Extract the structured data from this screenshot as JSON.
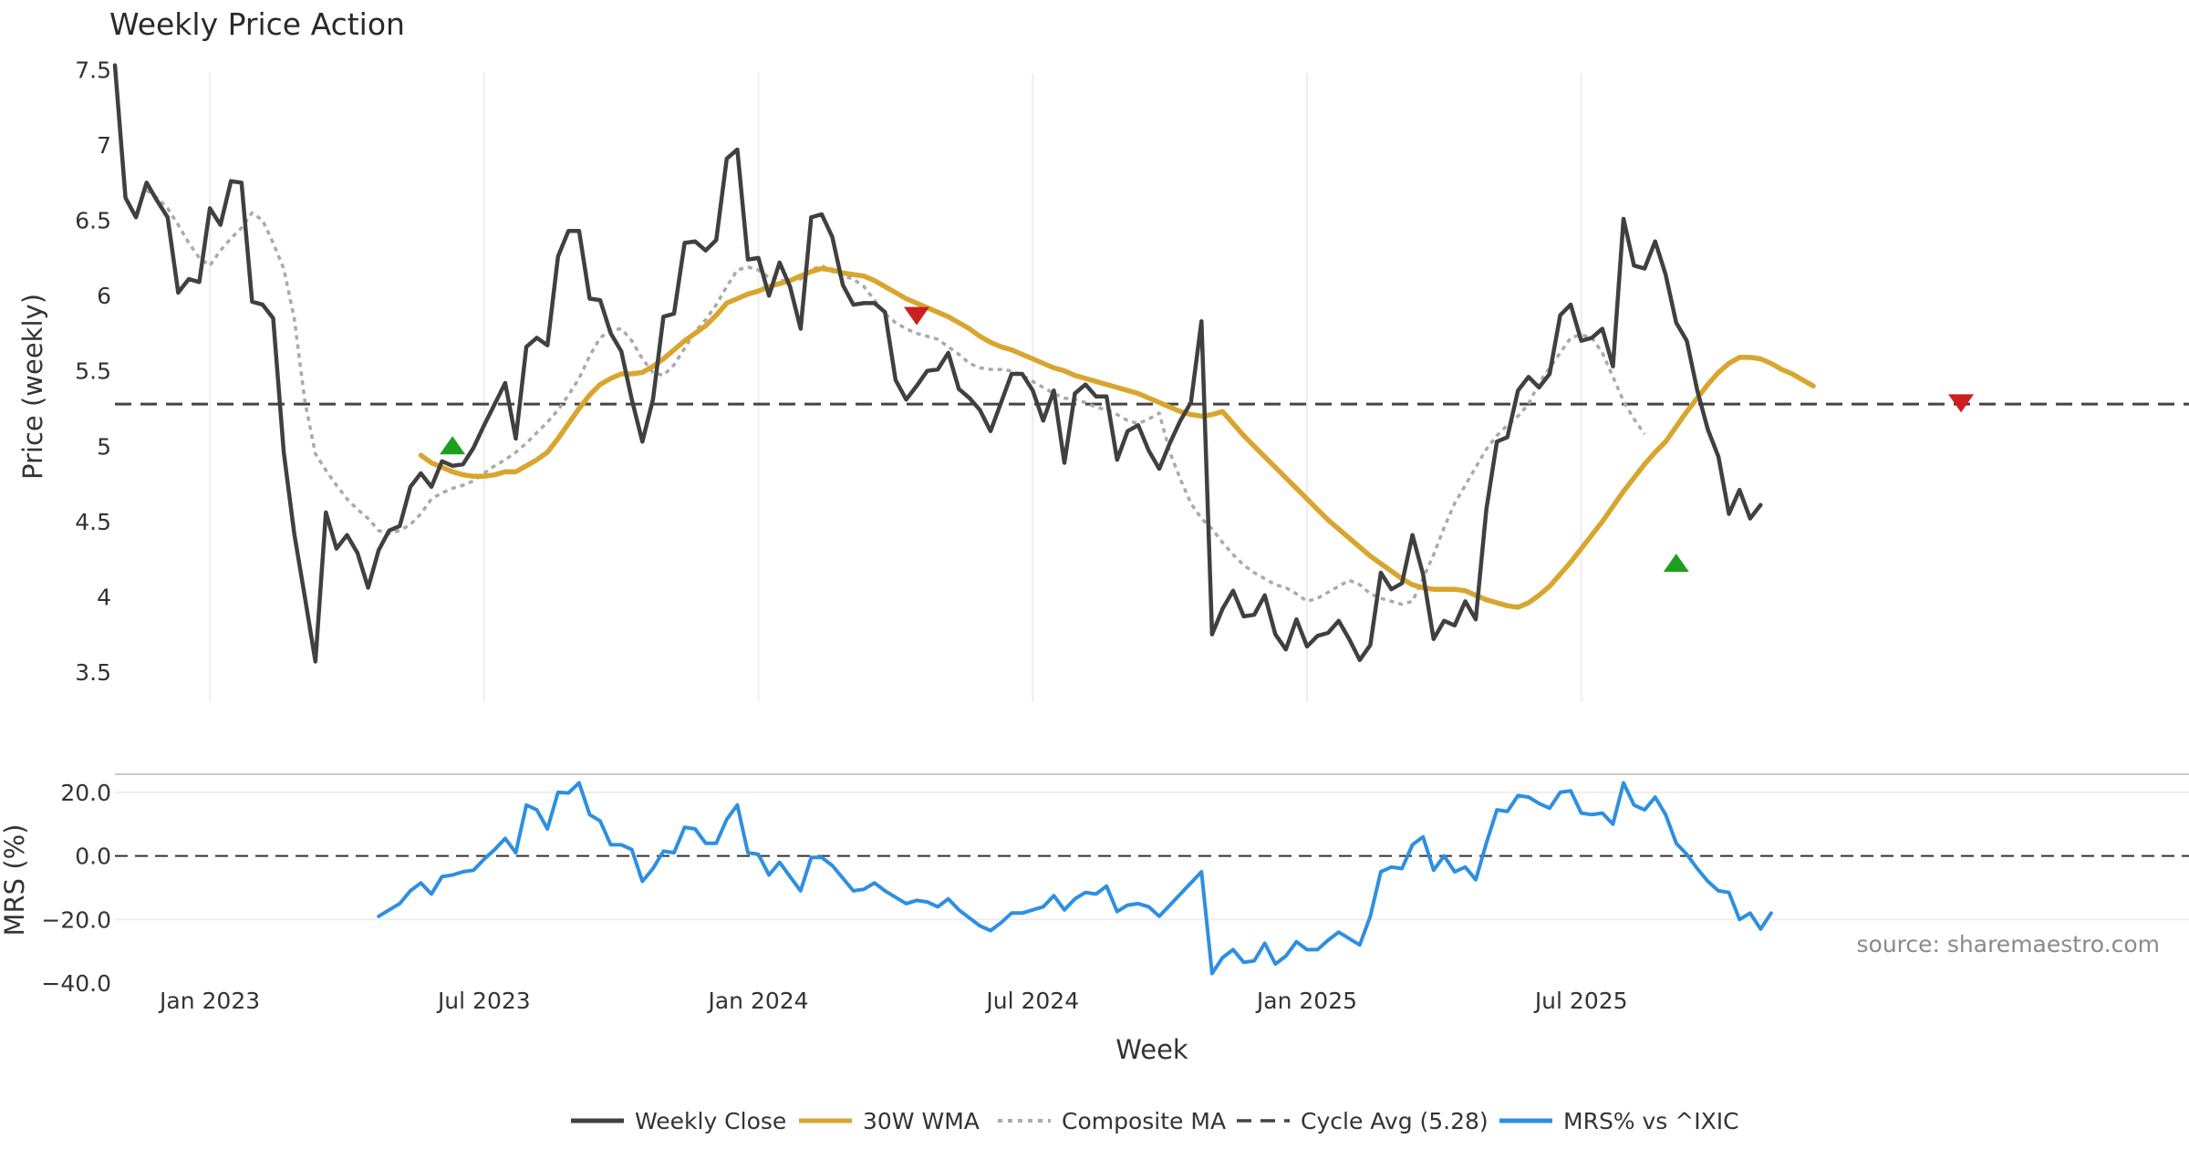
{
  "chart_data": {
    "type": "line",
    "title": "Weekly Price Action",
    "source_text": "source: sharemaestro.com",
    "xlabel": "Week",
    "x_tick_labels": [
      "Jan 2023",
      "Jul 2023",
      "Jan 2024",
      "Jul 2024",
      "Jan 2025",
      "Jul 2025"
    ],
    "x_range_weeks": [
      -9,
      180
    ],
    "price_panel": {
      "ylabel": "Price (weekly)",
      "ylim": [
        3.3,
        7.6
      ],
      "yticks": [
        3.5,
        4,
        4.5,
        5,
        5.5,
        6,
        6.5,
        7,
        7.5
      ],
      "ytick_labels": [
        "3.5",
        "4",
        "4.5",
        "5",
        "5.5",
        "6",
        "6.5",
        "7",
        "7.5"
      ],
      "weekly_close": {
        "name": "Weekly Close",
        "color": "#404040",
        "start_week": -9,
        "values": [
          7.53,
          6.65,
          6.52,
          6.75,
          6.63,
          6.52,
          6.02,
          6.11,
          6.09,
          6.58,
          6.47,
          6.76,
          6.75,
          5.96,
          5.94,
          5.85,
          4.96,
          4.42,
          4.0,
          3.57,
          4.56,
          4.32,
          4.41,
          4.29,
          4.06,
          4.31,
          4.44,
          4.47,
          4.73,
          4.82,
          4.73,
          4.9,
          4.87,
          4.88,
          4.99,
          5.14,
          5.28,
          5.42,
          5.05,
          5.66,
          5.72,
          5.67,
          6.26,
          6.43,
          6.43,
          5.98,
          5.97,
          5.75,
          5.63,
          5.31,
          5.03,
          5.31,
          5.86,
          5.88,
          6.35,
          6.36,
          6.3,
          6.37,
          6.91,
          6.97,
          6.24,
          6.25,
          6.0,
          6.22,
          6.06,
          5.78,
          6.52,
          6.54,
          6.39,
          6.07,
          5.94,
          5.95,
          5.95,
          5.89,
          5.44,
          5.31,
          5.4,
          5.5,
          5.51,
          5.62,
          5.38,
          5.32,
          5.24,
          5.1,
          5.29,
          5.48,
          5.48,
          5.37,
          5.17,
          5.37,
          4.89,
          5.35,
          5.41,
          5.33,
          5.33,
          4.91,
          5.1,
          5.14,
          4.97,
          4.85,
          5.02,
          5.17,
          5.29,
          5.83,
          3.75,
          3.92,
          4.04,
          3.87,
          3.88,
          4.01,
          3.75,
          3.65,
          3.85,
          3.67,
          3.74,
          3.76,
          3.84,
          3.72,
          3.58,
          3.68,
          4.16,
          4.05,
          4.09,
          4.41,
          4.15,
          3.72,
          3.84,
          3.81,
          3.97,
          3.85,
          4.58,
          5.03,
          5.06,
          5.37,
          5.46,
          5.39,
          5.48,
          5.87,
          5.94,
          5.7,
          5.72,
          5.78,
          5.53,
          6.51,
          6.2,
          6.18,
          6.36,
          6.14,
          5.82,
          5.7,
          5.37,
          5.11,
          4.93,
          4.55,
          4.71,
          4.52,
          4.61
        ]
      },
      "wma_30w": {
        "name": "30W WMA",
        "color": "#d8a62e",
        "start_week": 20,
        "values": [
          4.94,
          4.89,
          4.86,
          4.83,
          4.81,
          4.8,
          4.8,
          4.81,
          4.83,
          4.83,
          4.87,
          4.91,
          4.96,
          5.05,
          5.15,
          5.25,
          5.34,
          5.41,
          5.45,
          5.48,
          5.48,
          5.49,
          5.53,
          5.58,
          5.64,
          5.7,
          5.75,
          5.8,
          5.87,
          5.95,
          5.98,
          6.01,
          6.03,
          6.06,
          6.08,
          6.1,
          6.13,
          6.16,
          6.18,
          6.17,
          6.15,
          6.14,
          6.13,
          6.1,
          6.06,
          6.02,
          5.98,
          5.95,
          5.92,
          5.89,
          5.86,
          5.82,
          5.78,
          5.73,
          5.69,
          5.66,
          5.64,
          5.61,
          5.58,
          5.55,
          5.52,
          5.5,
          5.47,
          5.45,
          5.43,
          5.41,
          5.39,
          5.37,
          5.35,
          5.32,
          5.29,
          5.26,
          5.23,
          5.21,
          5.2,
          5.21,
          5.23,
          5.15,
          5.07,
          5.0,
          4.93,
          4.86,
          4.79,
          4.72,
          4.65,
          4.58,
          4.51,
          4.45,
          4.39,
          4.33,
          4.27,
          4.22,
          4.17,
          4.12,
          4.08,
          4.06,
          4.05,
          4.05,
          4.05,
          4.04,
          4.01,
          3.98,
          3.96,
          3.94,
          3.93,
          3.96,
          4.01,
          4.07,
          4.15,
          4.23,
          4.32,
          4.41,
          4.5,
          4.6,
          4.7,
          4.79,
          4.88,
          4.96,
          5.03,
          5.13,
          5.23,
          5.32,
          5.41,
          5.49,
          5.55,
          5.59,
          5.59,
          5.58,
          5.55,
          5.51,
          5.48,
          5.44,
          5.4
        ]
      },
      "composite_ma": {
        "name": "Composite MA",
        "color": "#aaaaaa",
        "start_week": -6,
        "values": [
          6.7,
          6.65,
          6.58,
          6.47,
          6.35,
          6.25,
          6.2,
          6.3,
          6.38,
          6.45,
          6.55,
          6.5,
          6.35,
          6.18,
          5.85,
          5.3,
          4.95,
          4.84,
          4.74,
          4.65,
          4.58,
          4.52,
          4.44,
          4.42,
          4.44,
          4.48,
          4.55,
          4.65,
          4.69,
          4.72,
          4.74,
          4.77,
          4.82,
          4.87,
          4.91,
          4.96,
          5.02,
          5.09,
          5.16,
          5.24,
          5.34,
          5.45,
          5.6,
          5.72,
          5.77,
          5.78,
          5.7,
          5.58,
          5.49,
          5.47,
          5.54,
          5.65,
          5.76,
          5.84,
          5.94,
          6.06,
          6.17,
          6.19,
          6.17,
          6.12,
          6.1,
          6.1,
          6.11,
          6.17,
          6.2,
          6.16,
          6.13,
          6.11,
          6.06,
          5.97,
          5.88,
          5.82,
          5.78,
          5.75,
          5.73,
          5.71,
          5.66,
          5.61,
          5.55,
          5.52,
          5.51,
          5.51,
          5.5,
          5.47,
          5.43,
          5.39,
          5.35,
          5.32,
          5.31,
          5.29,
          5.26,
          5.24,
          5.21,
          5.17,
          5.15,
          5.18,
          5.22,
          4.96,
          4.78,
          4.62,
          4.52,
          4.45,
          4.36,
          4.28,
          4.21,
          4.16,
          4.12,
          4.08,
          4.06,
          4.02,
          3.97,
          3.99,
          4.03,
          4.07,
          4.11,
          4.08,
          4.02,
          3.99,
          3.97,
          3.95,
          3.97,
          4.12,
          4.28,
          4.46,
          4.62,
          4.74,
          4.86,
          4.98,
          5.07,
          5.14,
          5.2,
          5.28,
          5.42,
          5.52,
          5.62,
          5.72,
          5.74,
          5.72,
          5.62,
          5.46,
          5.3,
          5.18,
          5.08
        ]
      },
      "cycle_avg": {
        "name": "Cycle Avg (5.28)",
        "value": 5.28,
        "color": "#444444"
      },
      "signals": [
        {
          "type": "buy",
          "week": 23,
          "value": 5.0,
          "color": "#1e9e1e"
        },
        {
          "type": "sell",
          "week": 67,
          "value": 5.87,
          "color": "#cc1f1f"
        },
        {
          "type": "buy",
          "week": 139,
          "value": 4.22,
          "color": "#1e9e1e"
        },
        {
          "type": "sell",
          "week": 166,
          "value": 5.29,
          "color": "#cc1f1f"
        }
      ]
    },
    "mrs_panel": {
      "ylabel": "MRS (%)",
      "ylim": [
        -40,
        26
      ],
      "yticks": [
        -40,
        -20,
        0,
        20
      ],
      "ytick_labels": [
        "−40.0",
        "−20.0",
        "0.0",
        "20.0"
      ],
      "zero_line": 0,
      "series": {
        "name": "MRS% vs ^IXIC",
        "color": "#2e8fe0",
        "start_week": 16,
        "values": [
          -19.0,
          -17.0,
          -15.0,
          -11.0,
          -8.5,
          -12.0,
          -6.5,
          -6.0,
          -5.0,
          -4.5,
          -1.0,
          2.0,
          5.5,
          1.0,
          16.0,
          14.5,
          8.5,
          20.0,
          19.8,
          23.0,
          13.0,
          11.0,
          3.5,
          3.5,
          2.0,
          -8.0,
          -4.0,
          1.5,
          1.0,
          9.0,
          8.5,
          4.0,
          4.0,
          11.5,
          16.0,
          1.0,
          0.5,
          -6.0,
          -2.0,
          -6.5,
          -11.0,
          -0.5,
          -0.5,
          -3.0,
          -7.0,
          -11.0,
          -10.5,
          -8.5,
          -11.0,
          -13.0,
          -15.0,
          -14.0,
          -14.5,
          -16.0,
          -13.5,
          -17.0,
          -19.5,
          -22.0,
          -23.5,
          -21.0,
          -18.0,
          -18.0,
          -17.0,
          -16.0,
          -12.5,
          -17.0,
          -13.5,
          -11.5,
          -12.0,
          -9.5,
          -17.5,
          -15.5,
          -15.0,
          -16.0,
          -19.0,
          -15.5,
          -12.0,
          -8.5,
          -5.0,
          -37.0,
          -32.0,
          -29.5,
          -33.5,
          -33.0,
          -27.5,
          -34.0,
          -31.5,
          -27.0,
          -29.5,
          -29.5,
          -26.5,
          -24.0,
          -26.0,
          -28.0,
          -19.0,
          -5.0,
          -3.5,
          -4.0,
          3.5,
          6.0,
          -4.5,
          0.0,
          -5.0,
          -3.5,
          -7.5,
          4.0,
          14.5,
          14.0,
          19.0,
          18.5,
          16.5,
          15.0,
          20.0,
          20.5,
          13.5,
          13.0,
          13.5,
          10.0,
          23.0,
          16.0,
          14.5,
          18.5,
          13.0,
          4.0,
          0.5,
          -4.0,
          -8.0,
          -11.0,
          -11.5,
          -20.0,
          -18.0,
          -23.0,
          -18.0
        ]
      }
    },
    "legend": {
      "position": "bottom-center",
      "items": [
        {
          "label": "Weekly Close",
          "style": "solid",
          "color": "#404040"
        },
        {
          "label": "30W WMA",
          "style": "solid",
          "color": "#d8a62e"
        },
        {
          "label": "Composite MA",
          "style": "dotted",
          "color": "#aaaaaa"
        },
        {
          "label": "Cycle Avg (5.28)",
          "style": "dashed",
          "color": "#444444"
        },
        {
          "label": "MRS% vs ^IXIC",
          "style": "solid",
          "color": "#2e8fe0"
        }
      ]
    }
  }
}
